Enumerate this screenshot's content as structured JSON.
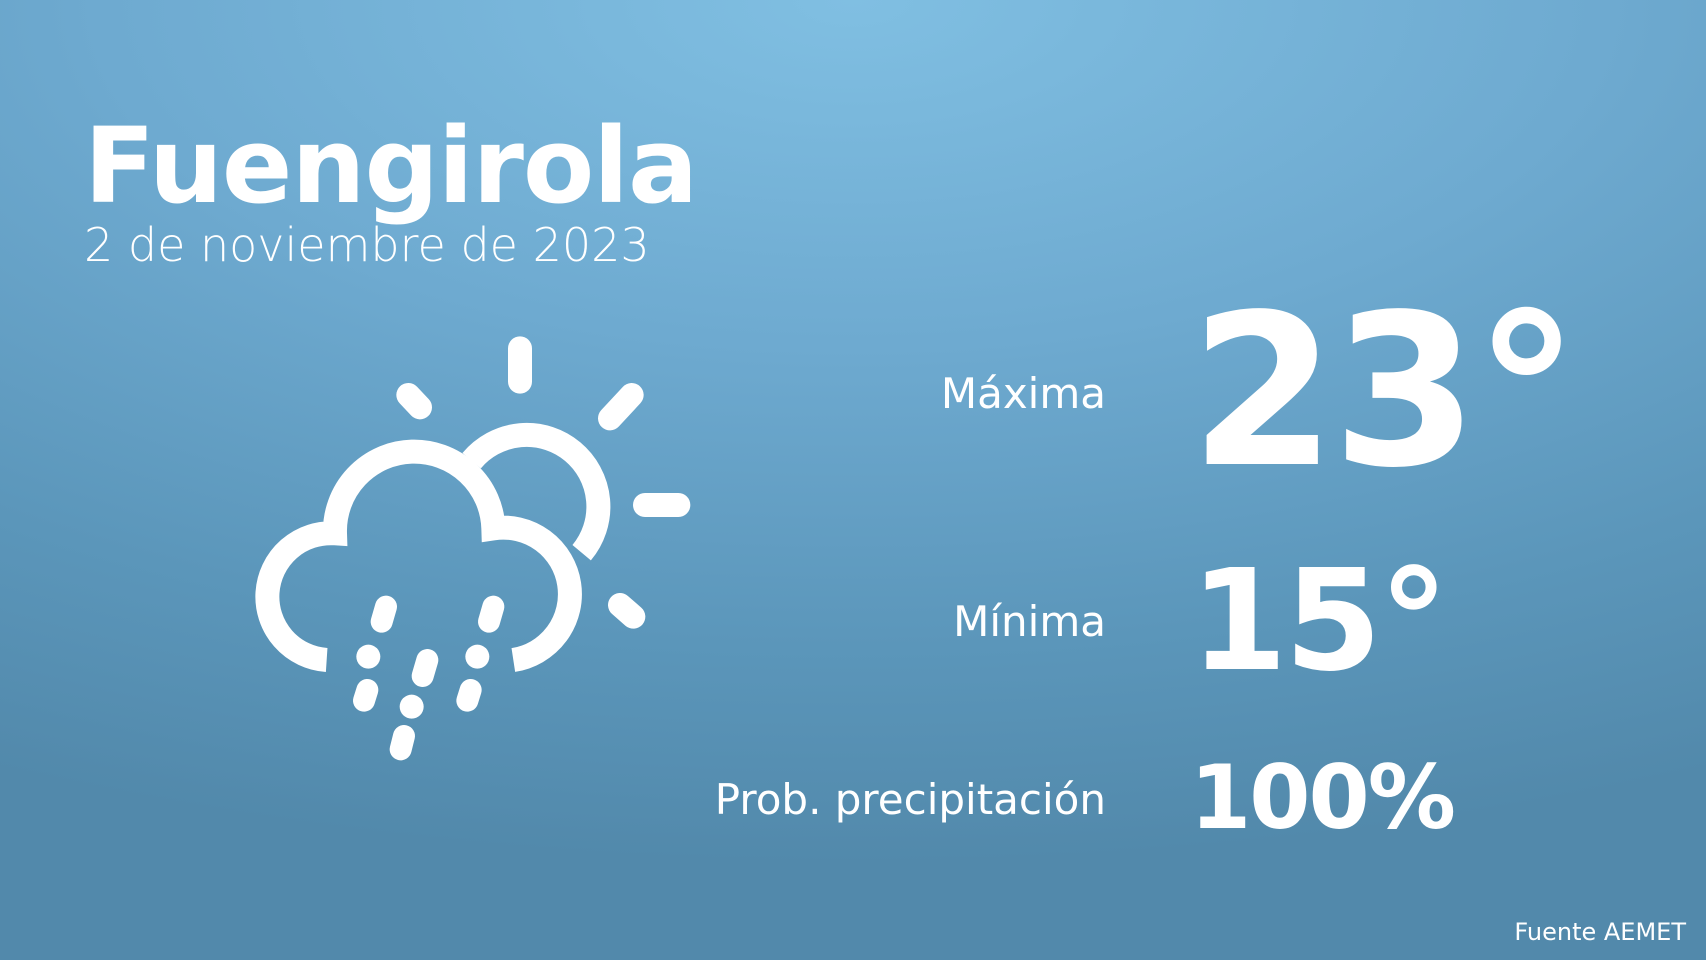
{
  "city": "Fuengirola",
  "date": "2 de noviembre de 2023",
  "weather_icon": "cloud-sun-rain-snow-icon",
  "colors": {
    "background_top": "#80bfe2",
    "background_bottom": "#5289ab",
    "text": "#ffffff"
  },
  "stats": {
    "max": {
      "label": "Máxima",
      "value": "23°"
    },
    "min": {
      "label": "Mínima",
      "value": "15°"
    },
    "precip": {
      "label": "Prob. precipitación",
      "value": "100%"
    }
  },
  "source": "Fuente AEMET"
}
